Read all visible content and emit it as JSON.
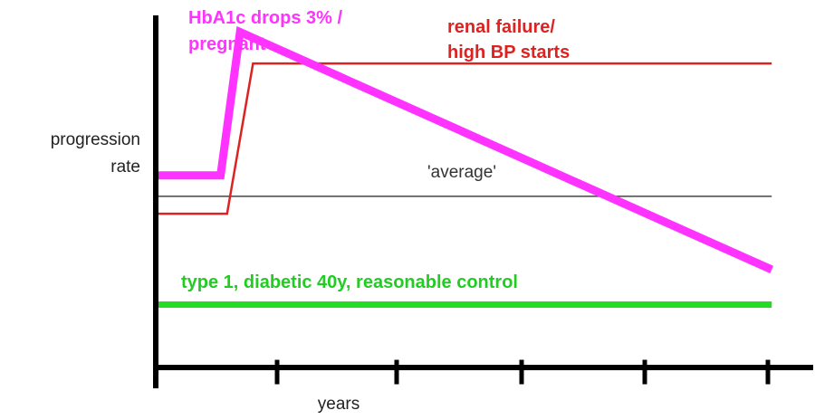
{
  "chart_data": {
    "type": "line",
    "title": "",
    "xlabel": "years",
    "ylabel": "progression rate",
    "xlim": [
      0,
      10
    ],
    "ylim": [
      0,
      10
    ],
    "x_ticks": [
      1,
      2,
      3,
      4,
      5
    ],
    "grid": false,
    "colors": {
      "axis": "#000000",
      "hba1c": "#ff33ff",
      "renal": "#dd2222",
      "average": "#444444",
      "type1": "#22dd22"
    },
    "series": [
      {
        "key": "hba1c",
        "points": [
          [
            0,
            5.5
          ],
          [
            1,
            5.5
          ],
          [
            1.3,
            9.6
          ],
          [
            9.5,
            2.8
          ]
        ]
      },
      {
        "key": "renal",
        "points": [
          [
            0,
            4.4
          ],
          [
            1.1,
            4.4
          ],
          [
            1.5,
            8.7
          ],
          [
            9.5,
            8.7
          ]
        ]
      },
      {
        "key": "average",
        "points": [
          [
            0,
            4.9
          ],
          [
            9.5,
            4.9
          ]
        ]
      },
      {
        "key": "type1",
        "points": [
          [
            0,
            1.8
          ],
          [
            9.5,
            1.8
          ]
        ]
      }
    ],
    "annotations": [
      {
        "key": "hba1c",
        "lines": [
          "HbA1c drops 3% /",
          "pregnant"
        ]
      },
      {
        "key": "renal",
        "lines": [
          "renal failure/",
          "high BP starts"
        ]
      },
      {
        "key": "average",
        "lines": [
          "'average'"
        ]
      },
      {
        "key": "type1",
        "lines": [
          "type 1, diabetic 40y, reasonable control"
        ]
      }
    ]
  }
}
